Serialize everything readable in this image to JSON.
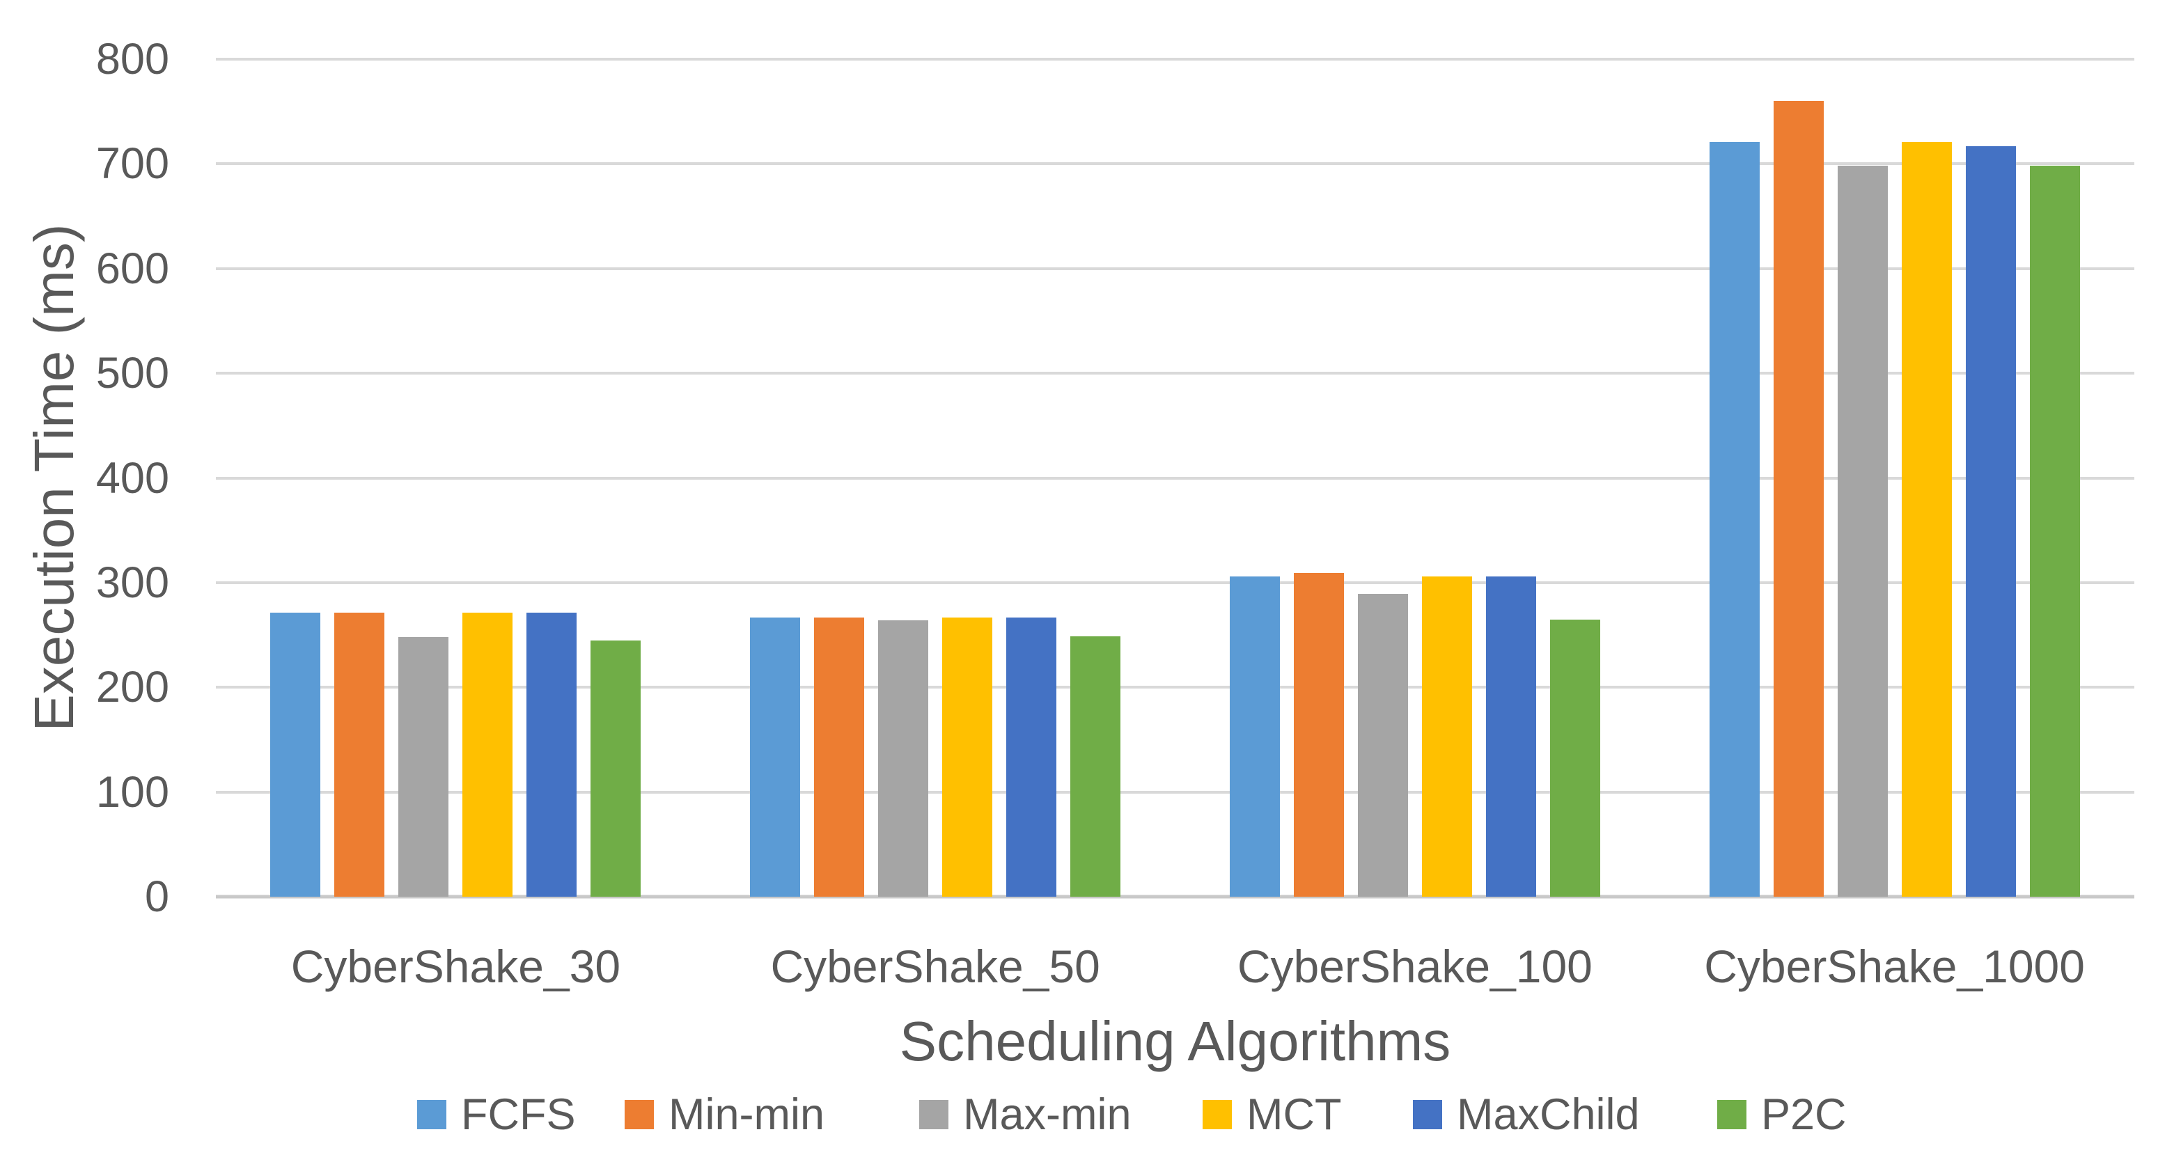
{
  "chart_data": {
    "type": "bar",
    "title": "",
    "xlabel": "Scheduling Algorithms",
    "ylabel": "Execution Time (ms)",
    "categories": [
      "CyberShake_30",
      "CyberShake_50",
      "CyberShake_100",
      "CyberShake_1000"
    ],
    "series": [
      {
        "name": "FCFS",
        "color": "#5B9BD5",
        "values": [
          271,
          267,
          306,
          721
        ]
      },
      {
        "name": "Min-min",
        "color": "#ED7D31",
        "values": [
          271,
          267,
          309,
          760
        ]
      },
      {
        "name": "Max-min",
        "color": "#A5A5A5",
        "values": [
          248,
          264,
          289,
          698
        ]
      },
      {
        "name": "MCT",
        "color": "#FFC000",
        "values": [
          271,
          267,
          306,
          721
        ]
      },
      {
        "name": "MaxChild",
        "color": "#4472C4",
        "values": [
          271,
          267,
          306,
          717
        ]
      },
      {
        "name": "P2C",
        "color": "#70AD47",
        "values": [
          245,
          249,
          265,
          698
        ]
      }
    ],
    "ylim": [
      0,
      800
    ],
    "yticks": [
      0,
      100,
      200,
      300,
      400,
      500,
      600,
      700,
      800
    ],
    "grid": "horizontal-only",
    "gridline_color": "#D9D9D9",
    "text_color": "#595959",
    "legend_position": "bottom",
    "legend_labels": [
      "FCFS",
      "Min-min",
      "Max-min",
      "MCT",
      "MaxChild",
      "P2C"
    ]
  }
}
